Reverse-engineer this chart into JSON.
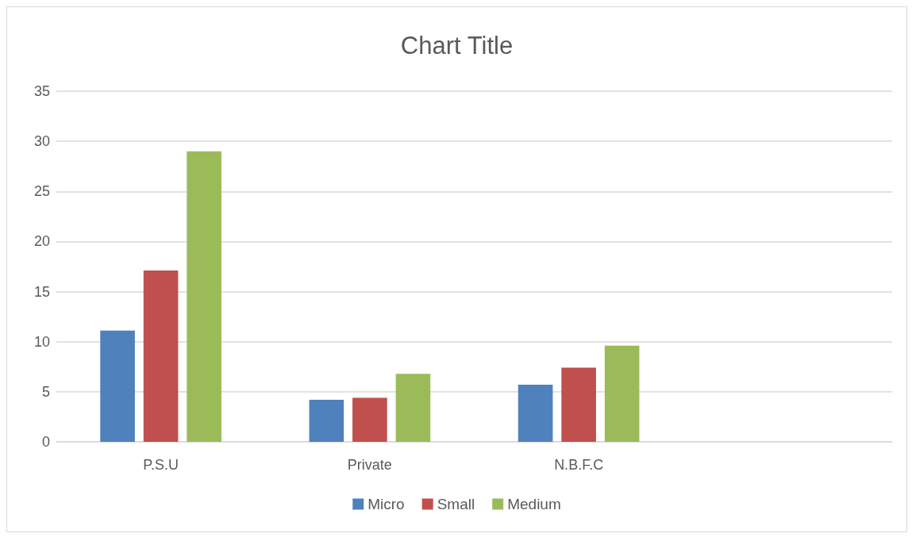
{
  "chart_data": {
    "type": "bar",
    "title": "Chart Title",
    "categories": [
      "P.S.U",
      "Private",
      "N.B.F.C",
      null
    ],
    "series": [
      {
        "name": "Micro",
        "color": "#4f81bd",
        "values": [
          11.1,
          4.2,
          5.7,
          null
        ]
      },
      {
        "name": "Small",
        "color": "#c0504d",
        "values": [
          17.1,
          4.4,
          7.4,
          null
        ]
      },
      {
        "name": "Medium",
        "color": "#9bbb59",
        "values": [
          29,
          6.8,
          9.6,
          null
        ]
      }
    ],
    "ylim": [
      0,
      35
    ],
    "yticks": [
      0,
      5,
      10,
      15,
      20,
      25,
      30,
      35
    ],
    "grid": "y",
    "legend": "bottom"
  }
}
